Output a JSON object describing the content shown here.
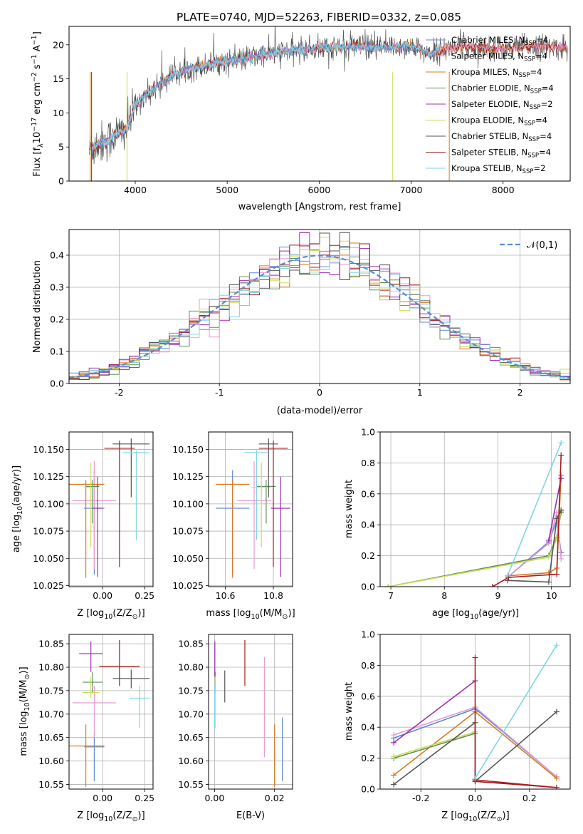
{
  "title": "PLATE=0740, MJD=52263, FIBERID=0332, z=0.085",
  "models": [
    {
      "name": "Chabrier MILES, N_SSP=4",
      "lib": "Chabrier MILES",
      "nssp": "4",
      "color": "#5b89d5"
    },
    {
      "name": "Salpeter MILES, N_SSP=4",
      "lib": "Salpeter MILES",
      "nssp": "4",
      "color": "#e79bd0"
    },
    {
      "name": "Kroupa MILES, N_SSP=4",
      "lib": "Kroupa MILES",
      "nssp": "4",
      "color": "#d9791f"
    },
    {
      "name": "Chabrier ELODIE, N_SSP=4",
      "lib": "Chabrier ELODIE",
      "nssp": "4",
      "color": "#5f8f5a"
    },
    {
      "name": "Salpeter ELODIE, N_SSP=2",
      "lib": "Salpeter ELODIE",
      "nssp": "2",
      "color": "#9b2fae"
    },
    {
      "name": "Kroupa ELODIE, N_SSP=4",
      "lib": "Kroupa ELODIE",
      "nssp": "4",
      "color": "#c9dd55"
    },
    {
      "name": "Chabrier STELIB, N_SSP=4",
      "lib": "Chabrier STELIB",
      "nssp": "4",
      "color": "#555555"
    },
    {
      "name": "Salpeter STELIB, N_SSP=4",
      "lib": "Salpeter STELIB",
      "nssp": "4",
      "color": "#a51e1e"
    },
    {
      "name": "Kroupa STELIB, N_SSP=2",
      "lib": "Kroupa STELIB",
      "nssp": "2",
      "color": "#7fd6e0"
    }
  ],
  "chart_data": [
    {
      "type": "line",
      "title": "PLATE=0740, MJD=52263, FIBERID=0332, z=0.085",
      "xlabel": "wavelength [Angstrom, rest frame]",
      "ylabel_main": "Flux [f",
      "ylabel_sub": "λ",
      "ylabel_mid": "10",
      "ylabel_sup1": "−17",
      "ylabel_mid2": " erg cm",
      "ylabel_sup2": "−2",
      "ylabel_mid3": " s",
      "ylabel_sup3": "−1",
      "ylabel_mid4": " A",
      "ylabel_sup4": "−1",
      "ylabel_end": "]",
      "xlim": [
        3280,
        8730
      ],
      "ylim": [
        0,
        22.7
      ],
      "xticks": [
        4000,
        5000,
        6000,
        7000,
        8000
      ],
      "yticks": [
        0,
        5,
        10,
        15,
        20
      ],
      "legend_position": "upper-right",
      "spectrum_envelope": {
        "x": [
          3500,
          3600,
          3700,
          3800,
          3900,
          4000,
          4100,
          4200,
          4300,
          4400,
          4500,
          4600,
          4700,
          4800,
          4900,
          5000,
          5200,
          5400,
          5600,
          5800,
          6000,
          6200,
          6400,
          6600,
          6800,
          7000,
          7200,
          7400,
          7600,
          7800,
          8000,
          8200,
          8400,
          8600
        ],
        "y": [
          4.5,
          5.5,
          6.0,
          7.0,
          7.5,
          11.0,
          12.5,
          13.5,
          14.5,
          15.5,
          16.0,
          16.5,
          16.8,
          17.0,
          17.5,
          17.5,
          18.0,
          18.5,
          19.0,
          19.2,
          19.5,
          19.6,
          19.8,
          19.5,
          19.7,
          19.8,
          18.8,
          19.5,
          19.8,
          19.6,
          19.4,
          19.7,
          19.8,
          19.6
        ]
      }
    },
    {
      "type": "line",
      "xlabel": "(data-model)/error",
      "ylabel": "Normed distribution",
      "xlim": [
        -2.5,
        2.5
      ],
      "ylim": [
        0,
        0.48
      ],
      "xticks": [
        -2,
        -1,
        0,
        1,
        2
      ],
      "yticks": [
        0.0,
        0.1,
        0.2,
        0.3,
        0.4
      ],
      "reference_curve": {
        "name": "𝒩(0,1)",
        "mean": 0,
        "sigma": 1,
        "color": "#5b89d5"
      },
      "legend_position": "upper-right",
      "bin_width": 0.1
    },
    {
      "type": "scatter",
      "xlabel_main": "Z [log",
      "xlabel_sub": "10",
      "xlabel_end": "(Z/Z",
      "xlabel_sun": "⊙",
      "xlabel_close": ")]",
      "ylabel_main": "age  [log",
      "ylabel_sub": "10",
      "ylabel_end": "(age/yr)]",
      "xlim": [
        -0.2,
        0.3
      ],
      "ylim": [
        10.024,
        10.166
      ],
      "xticks": [
        0.0,
        0.25
      ],
      "xticklabels": [
        "0.00",
        "0.25"
      ],
      "yticks": [
        10.025,
        10.05,
        10.075,
        10.1,
        10.125,
        10.15
      ],
      "points": [
        {
          "x": -0.05,
          "y": 10.096,
          "xerr": 0.06,
          "ylo": 10.035,
          "yhi": 10.131
        },
        {
          "x": -0.05,
          "y": 10.103,
          "xerr": 0.13,
          "ylo": 10.04,
          "yhi": 10.139
        },
        {
          "x": -0.1,
          "y": 10.118,
          "xerr": 0.11,
          "ylo": 10.032,
          "yhi": 10.122
        },
        {
          "x": -0.06,
          "y": 10.116,
          "xerr": 0.04,
          "ylo": 10.082,
          "yhi": 10.122
        },
        {
          "x": -0.03,
          "y": 10.096,
          "xerr": 0.03,
          "ylo": 10.033,
          "yhi": 10.125
        },
        {
          "x": -0.07,
          "y": 10.115,
          "xerr": 0.04,
          "ylo": 10.06,
          "yhi": 10.138
        },
        {
          "x": 0.17,
          "y": 10.155,
          "xerr": 0.11,
          "ylo": 10.106,
          "yhi": 10.16
        },
        {
          "x": 0.1,
          "y": 10.151,
          "xerr": 0.09,
          "ylo": 10.042,
          "yhi": 10.158
        },
        {
          "x": 0.2,
          "y": 10.147,
          "xerr": 0.08,
          "ylo": 10.067,
          "yhi": 10.149
        }
      ]
    },
    {
      "type": "scatter",
      "xlabel_main": "mass [log",
      "xlabel_sub": "10",
      "xlabel_end": "(M/M",
      "xlabel_sun": "⊙",
      "xlabel_close": ")]",
      "xlim": [
        10.53,
        10.88
      ],
      "ylim": [
        10.024,
        10.166
      ],
      "xticks": [
        10.6,
        10.8
      ],
      "yticks": [
        10.025,
        10.05,
        10.075,
        10.1,
        10.125,
        10.15
      ],
      "points": [
        {
          "x": 10.63,
          "y": 10.096,
          "xerr": 0.07,
          "ylo": 10.035,
          "yhi": 10.131
        },
        {
          "x": 10.72,
          "y": 10.103,
          "xerr": 0.07,
          "ylo": 10.04,
          "yhi": 10.139
        },
        {
          "x": 10.63,
          "y": 10.118,
          "xerr": 0.07,
          "ylo": 10.032,
          "yhi": 10.122
        },
        {
          "x": 10.77,
          "y": 10.116,
          "xerr": 0.04,
          "ylo": 10.082,
          "yhi": 10.122
        },
        {
          "x": 10.83,
          "y": 10.096,
          "xerr": 0.04,
          "ylo": 10.033,
          "yhi": 10.125
        },
        {
          "x": 10.75,
          "y": 10.115,
          "xerr": 0.04,
          "ylo": 10.06,
          "yhi": 10.138
        },
        {
          "x": 10.78,
          "y": 10.155,
          "xerr": 0.04,
          "ylo": 10.106,
          "yhi": 10.16
        },
        {
          "x": 10.8,
          "y": 10.151,
          "xerr": 0.06,
          "ylo": 10.042,
          "yhi": 10.158
        },
        {
          "x": 10.73,
          "y": 10.147,
          "xerr": 0.05,
          "ylo": 10.067,
          "yhi": 10.149
        }
      ]
    },
    {
      "type": "line",
      "xlabel_main": "age  [log",
      "xlabel_sub": "10",
      "xlabel_end": "(age/yr)]",
      "ylabel": "mass weight",
      "xlim": [
        6.8,
        10.35
      ],
      "ylim": [
        0.0,
        1.0
      ],
      "xticks": [
        7,
        8,
        9,
        10
      ],
      "yticks": [
        0.0,
        0.2,
        0.4,
        0.6,
        0.8,
        1.0
      ],
      "series": [
        {
          "x": [
            9.18,
            9.95,
            10.1,
            10.18
          ],
          "y": [
            0.06,
            0.29,
            0.43,
            0.22
          ]
        },
        {
          "x": [
            9.18,
            9.95,
            10.1,
            10.18
          ],
          "y": [
            0.06,
            0.28,
            0.48,
            0.18
          ]
        },
        {
          "x": [
            9.18,
            9.95,
            10.1,
            10.18
          ],
          "y": [
            0.07,
            0.09,
            0.12,
            0.72
          ]
        },
        {
          "x": [
            6.95,
            9.95,
            10.1,
            10.18
          ],
          "y": [
            0.0,
            0.2,
            0.32,
            0.48
          ]
        },
        {
          "x": [
            9.95,
            10.18
          ],
          "y": [
            0.3,
            0.7
          ]
        },
        {
          "x": [
            6.95,
            9.95,
            10.1,
            10.18
          ],
          "y": [
            0.0,
            0.19,
            0.31,
            0.5
          ]
        },
        {
          "x": [
            9.18,
            9.95,
            10.1,
            10.18
          ],
          "y": [
            0.04,
            0.03,
            0.44,
            0.49
          ]
        },
        {
          "x": [
            8.9,
            9.2,
            10.1,
            10.18
          ],
          "y": [
            0.0,
            0.06,
            0.08,
            0.85
          ]
        },
        {
          "x": [
            9.18,
            10.18
          ],
          "y": [
            0.07,
            0.93
          ]
        }
      ]
    },
    {
      "type": "scatter",
      "xlabel_main": "Z [log",
      "xlabel_sub": "10",
      "xlabel_end": "(Z/Z",
      "xlabel_sun": "⊙",
      "xlabel_close": ")]",
      "ylabel_main": "mass [log",
      "ylabel_sub": "10",
      "ylabel_end": "(M/M",
      "ylabel_sun": "⊙",
      "ylabel_close": ")]",
      "xlim": [
        -0.2,
        0.3
      ],
      "ylim": [
        10.54,
        10.87
      ],
      "xticks": [
        0.0,
        0.25
      ],
      "xticklabels": [
        "0.00",
        "0.25"
      ],
      "yticks": [
        10.55,
        10.6,
        10.65,
        10.7,
        10.75,
        10.8,
        10.85
      ],
      "points": [
        {
          "x": -0.05,
          "y": 10.63,
          "xerr": 0.06,
          "ylo": 10.557,
          "yhi": 10.66
        },
        {
          "x": -0.05,
          "y": 10.724,
          "xerr": 0.13,
          "ylo": 10.65,
          "yhi": 10.76
        },
        {
          "x": -0.1,
          "y": 10.632,
          "xerr": 0.11,
          "ylo": 10.545,
          "yhi": 10.678
        },
        {
          "x": -0.06,
          "y": 10.768,
          "xerr": 0.06,
          "ylo": 10.745,
          "yhi": 10.79
        },
        {
          "x": -0.07,
          "y": 10.829,
          "xerr": 0.07,
          "ylo": 10.79,
          "yhi": 10.855
        },
        {
          "x": -0.07,
          "y": 10.746,
          "xerr": 0.05,
          "ylo": 10.735,
          "yhi": 10.78
        },
        {
          "x": 0.17,
          "y": 10.776,
          "xerr": 0.11,
          "ylo": 10.755,
          "yhi": 10.795
        },
        {
          "x": 0.1,
          "y": 10.802,
          "xerr": 0.12,
          "ylo": 10.76,
          "yhi": 10.858
        },
        {
          "x": 0.22,
          "y": 10.734,
          "xerr": 0.06,
          "ylo": 10.67,
          "yhi": 10.76
        }
      ]
    },
    {
      "type": "scatter",
      "xlabel": "E(B-V)",
      "xlim": [
        -0.002,
        0.026
      ],
      "ylim": [
        10.54,
        10.87
      ],
      "xticks": [
        0.0,
        0.02
      ],
      "xticklabels": [
        "0.00",
        "0.02"
      ],
      "yticks": [
        10.55,
        10.6,
        10.65,
        10.7,
        10.75,
        10.8,
        10.85
      ],
      "points": [
        {
          "x": 0.0226,
          "ylo": 10.557,
          "yhi": 10.693
        },
        {
          "x": 0.0166,
          "ylo": 10.608,
          "yhi": 10.822
        },
        {
          "x": 0.02,
          "ylo": 10.545,
          "yhi": 10.678
        },
        {
          "x": 0.0002,
          "ylo": 10.745,
          "yhi": 10.79
        },
        {
          "x": 0.0001,
          "ylo": 10.78,
          "yhi": 10.855
        },
        {
          "x": 0.0002,
          "ylo": 10.67,
          "yhi": 10.78
        },
        {
          "x": 0.0034,
          "ylo": 10.725,
          "yhi": 10.793
        },
        {
          "x": 0.0101,
          "ylo": 10.76,
          "yhi": 10.858
        },
        {
          "x": 0.0,
          "ylo": 10.67,
          "yhi": 10.76
        }
      ]
    },
    {
      "type": "line",
      "xlabel_main": "Z [log",
      "xlabel_sub": "10",
      "xlabel_end": "(Z/Z",
      "xlabel_sun": "⊙",
      "xlabel_close": ")]",
      "ylabel": "mass weight",
      "xlim": [
        -0.35,
        0.35
      ],
      "ylim": [
        0.0,
        1.0
      ],
      "xticks": [
        -0.2,
        0.0,
        0.2
      ],
      "yticks": [
        0.0,
        0.2,
        0.4,
        0.6,
        0.8,
        1.0
      ],
      "series": [
        {
          "x": [
            -0.3,
            0.0,
            0.3
          ],
          "y": [
            0.33,
            0.52,
            0.08
          ]
        },
        {
          "x": [
            -0.3,
            0.0,
            0.3
          ],
          "y": [
            0.35,
            0.53,
            0.08
          ]
        },
        {
          "x": [
            -0.3,
            0.0,
            0.3
          ],
          "y": [
            0.09,
            0.5,
            0.07
          ]
        },
        {
          "x": [
            -0.3,
            0.0
          ],
          "y": [
            0.2,
            0.36
          ]
        },
        {
          "x": [
            -0.3,
            0.0
          ],
          "y": [
            0.3,
            0.7
          ]
        },
        {
          "x": [
            -0.3,
            0.0
          ],
          "y": [
            0.21,
            0.37
          ]
        },
        {
          "x": [
            -0.3,
            0.0,
            0.0,
            0.3
          ],
          "y": [
            0.03,
            0.43,
            0.05,
            0.5
          ]
        },
        {
          "x": [
            0.0,
            0.0,
            0.3,
            0.0
          ],
          "y": [
            0.85,
            0.05,
            0.01,
            0.06
          ]
        },
        {
          "x": [
            0.0,
            0.3
          ],
          "y": [
            0.07,
            0.93
          ]
        }
      ]
    }
  ]
}
